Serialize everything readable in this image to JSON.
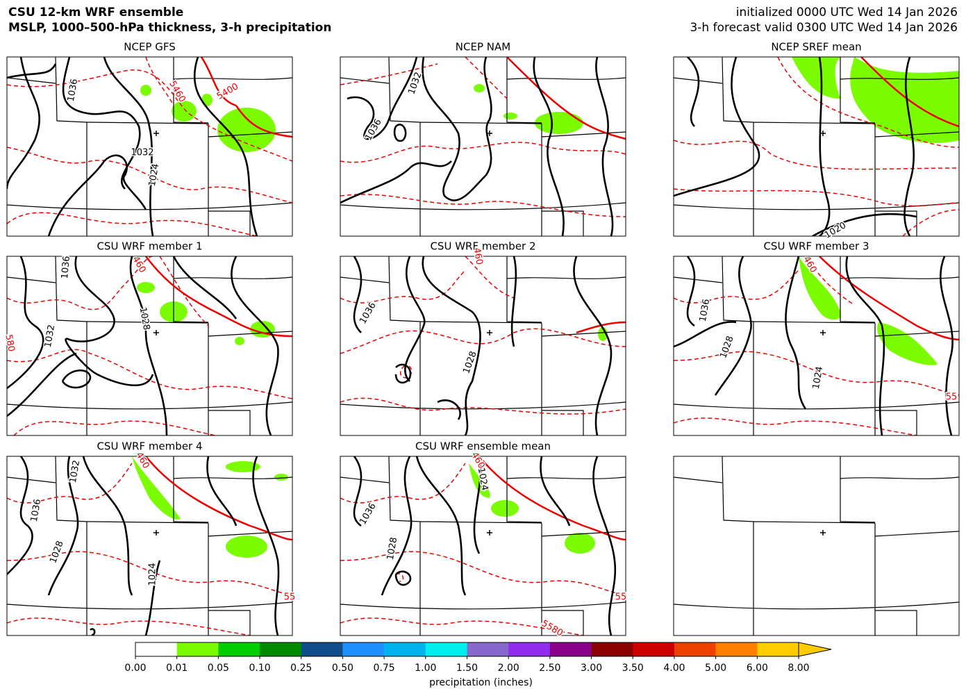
{
  "header": {
    "title": "CSU 12-km WRF ensemble",
    "subtitle": "MSLP, 1000–500-hPa thickness, 3-h precipitation",
    "initialized": "initialized 0000 UTC Wed 14 Jan 2026",
    "valid": "3-h forecast valid 0300 UTC Wed 14 Jan 2026"
  },
  "panels": [
    {
      "title": "NCEP GFS",
      "contour_labels": [
        {
          "text": "1036",
          "color": "#000"
        },
        {
          "text": "5460",
          "color": "#e00"
        },
        {
          "text": "5400",
          "color": "#e00"
        },
        {
          "text": "1032",
          "color": "#000"
        },
        {
          "text": "1024",
          "color": "#000"
        }
      ]
    },
    {
      "title": "NCEP NAM",
      "contour_labels": [
        {
          "text": "1032",
          "color": "#000"
        },
        {
          "text": "1036",
          "color": "#000"
        }
      ]
    },
    {
      "title": "NCEP SREF mean",
      "contour_labels": [
        {
          "text": "1020",
          "color": "#000"
        }
      ]
    },
    {
      "title": "CSU WRF member 1",
      "contour_labels": [
        {
          "text": "1036",
          "color": "#000"
        },
        {
          "text": "460",
          "color": "#e00"
        },
        {
          "text": "1028",
          "color": "#000"
        },
        {
          "text": "1032",
          "color": "#000"
        },
        {
          "text": "580",
          "color": "#e00"
        }
      ]
    },
    {
      "title": "CSU WRF member 2",
      "contour_labels": [
        {
          "text": "1036",
          "color": "#000"
        },
        {
          "text": "1028",
          "color": "#000"
        },
        {
          "text": "460",
          "color": "#e00"
        }
      ]
    },
    {
      "title": "CSU WRF member 3",
      "contour_labels": [
        {
          "text": "1036",
          "color": "#000"
        },
        {
          "text": "1028",
          "color": "#000"
        },
        {
          "text": "1024",
          "color": "#000"
        },
        {
          "text": "460",
          "color": "#e00"
        },
        {
          "text": "55",
          "color": "#e00"
        }
      ]
    },
    {
      "title": "CSU WRF member 4",
      "contour_labels": [
        {
          "text": "1032",
          "color": "#000"
        },
        {
          "text": "1036",
          "color": "#000"
        },
        {
          "text": "1028",
          "color": "#000"
        },
        {
          "text": "1024",
          "color": "#000"
        },
        {
          "text": "55",
          "color": "#e00"
        },
        {
          "text": "460",
          "color": "#e00"
        }
      ]
    },
    {
      "title": "CSU WRF ensemble mean",
      "contour_labels": [
        {
          "text": "1024",
          "color": "#000"
        },
        {
          "text": "1036",
          "color": "#000"
        },
        {
          "text": "1028",
          "color": "#000"
        },
        {
          "text": "5580",
          "color": "#e00"
        },
        {
          "text": "55",
          "color": "#e00"
        },
        {
          "text": "460",
          "color": "#e00"
        }
      ]
    }
  ],
  "colorbar": {
    "label": "precipitation (inches)",
    "ticks": [
      "0.00",
      "0.01",
      "0.05",
      "0.10",
      "0.25",
      "0.50",
      "0.75",
      "1.00",
      "1.50",
      "2.00",
      "2.50",
      "3.00",
      "3.50",
      "4.00",
      "5.00",
      "6.00",
      "8.00"
    ],
    "colors": [
      "#ffffff",
      "#7cfc00",
      "#00cd00",
      "#008b00",
      "#104e8b",
      "#1e90ff",
      "#00b2ee",
      "#00eeee",
      "#8968cd",
      "#912cee",
      "#8b008b",
      "#8b0000",
      "#cd0000",
      "#ee4000",
      "#ff7f00",
      "#ffcc00"
    ],
    "extend_color": "#ffcc00"
  }
}
